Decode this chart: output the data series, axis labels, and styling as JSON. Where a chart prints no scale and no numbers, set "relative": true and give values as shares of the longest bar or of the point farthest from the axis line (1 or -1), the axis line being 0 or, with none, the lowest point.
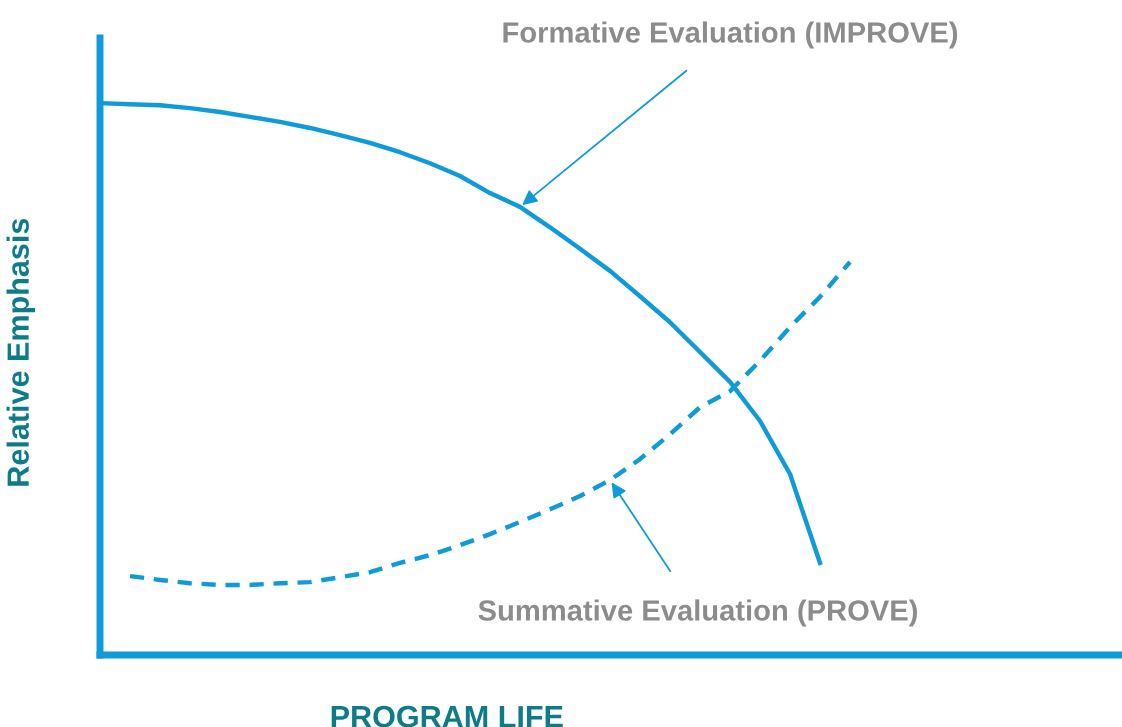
{
  "chart_data": {
    "type": "line",
    "relative": true,
    "xlabel": "PROGRAM LIFE",
    "ylabel": "Relative Emphasis",
    "categories": [
      null,
      null,
      null,
      null,
      null,
      null,
      null,
      null,
      null,
      null,
      null,
      null,
      null,
      null,
      null,
      null,
      null,
      null,
      null,
      null,
      null,
      null,
      null,
      null,
      null,
      null
    ],
    "series": [
      {
        "name": "Formative Evaluation (IMPROVE)",
        "color": "#0f9bd7",
        "line_style": "solid",
        "values": [
          1.0,
          0.998,
          0.996,
          0.991,
          0.984,
          0.975,
          0.966,
          0.955,
          0.942,
          0.928,
          0.911,
          0.891,
          0.868,
          0.837,
          0.812,
          0.775,
          0.736,
          0.696,
          0.65,
          0.603,
          0.549,
          0.495,
          0.424,
          0.328,
          0.167,
          null
        ]
      },
      {
        "name": "Summative Evaluation (PROVE)",
        "color": "#0f9bd7",
        "line_style": "dashed",
        "values": [
          null,
          0.143,
          0.136,
          0.13,
          0.127,
          0.127,
          0.13,
          0.132,
          0.141,
          0.15,
          0.167,
          0.181,
          0.199,
          0.219,
          0.241,
          0.264,
          0.288,
          0.317,
          0.355,
          0.4,
          0.449,
          0.478,
          0.533,
          0.594,
          0.649,
          0.712
        ]
      }
    ]
  }
}
